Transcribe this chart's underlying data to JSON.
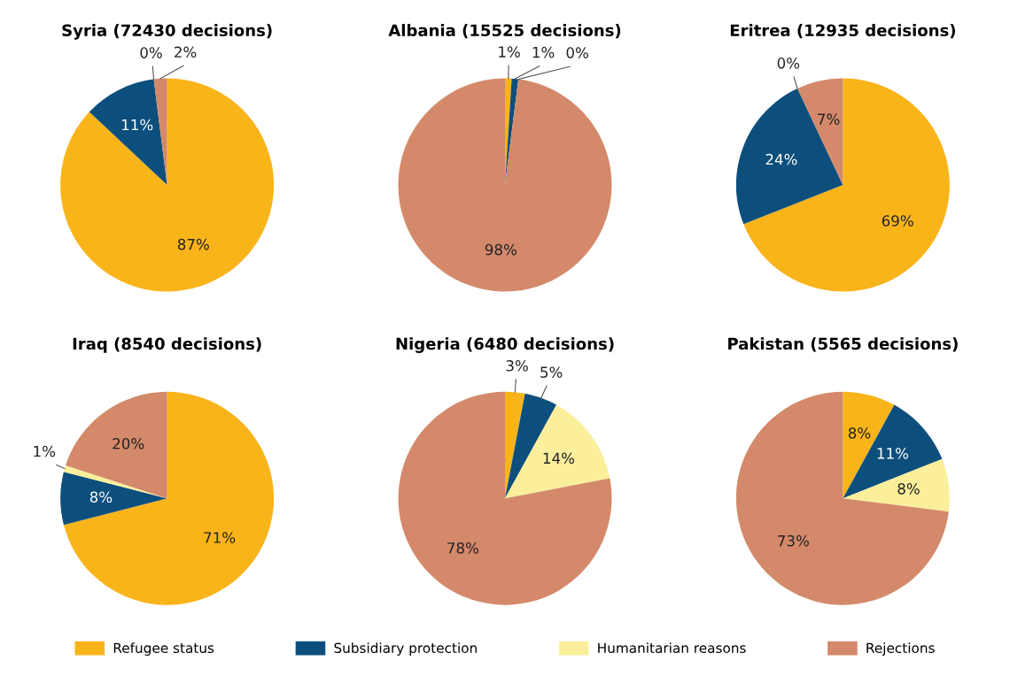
{
  "chart_data": [
    {
      "type": "pie",
      "title": "Syria (72430 decisions)",
      "colors": [
        "#f9b41a",
        "#0d4f7c",
        "#fbef9c",
        "#d4896b"
      ],
      "values": [
        87,
        11,
        0,
        2
      ],
      "value_labels": [
        "87%",
        "11%",
        "0%",
        "2%"
      ]
    },
    {
      "type": "pie",
      "title": "Albania (15525 decisions)",
      "colors": [
        "#f9b41a",
        "#0d4f7c",
        "#fbef9c",
        "#d4896b"
      ],
      "values": [
        1,
        1,
        0,
        98
      ],
      "value_labels": [
        "1%",
        "1%",
        "0%",
        "98%"
      ]
    },
    {
      "type": "pie",
      "title": "Eritrea (12935 decisions)",
      "colors": [
        "#f9b41a",
        "#0d4f7c",
        "#fbef9c",
        "#d4896b"
      ],
      "values": [
        69,
        24,
        0,
        7
      ],
      "value_labels": [
        "69%",
        "24%",
        "0%",
        "7%"
      ]
    },
    {
      "type": "pie",
      "title": "Iraq (8540 decisions)",
      "colors": [
        "#f9b41a",
        "#0d4f7c",
        "#fbef9c",
        "#d4896b"
      ],
      "values": [
        71,
        8,
        1,
        20
      ],
      "value_labels": [
        "71%",
        "8%",
        "1%",
        "20%"
      ]
    },
    {
      "type": "pie",
      "title": "Nigeria (6480 decisions)",
      "categories": [
        "Refugee status",
        "Subsidiary protection",
        "Humanitarian reasons",
        "Rejections"
      ],
      "legend": "bottom",
      "colors": [
        "#f9b41a",
        "#0d4f7c",
        "#fbef9c",
        "#d4896b"
      ],
      "values": [
        3,
        5,
        14,
        78
      ],
      "value_labels": [
        "3%",
        "5%",
        "14%",
        "78%"
      ]
    },
    {
      "type": "pie",
      "title": "Pakistan (5565 decisions)",
      "colors": [
        "#f9b41a",
        "#0d4f7c",
        "#fbef9c",
        "#d4896b"
      ],
      "values": [
        8,
        11,
        8,
        73
      ],
      "value_labels": [
        "8%",
        "11%",
        "8%",
        "73%"
      ]
    }
  ]
}
